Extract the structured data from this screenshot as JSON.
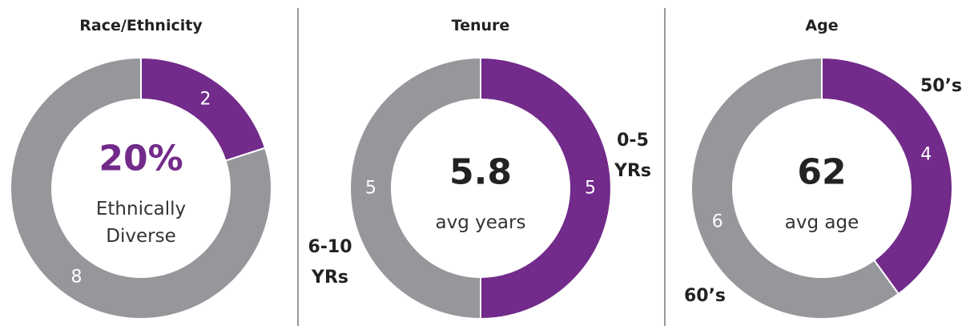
{
  "chart_data": [
    {
      "type": "pie",
      "title": "Race/Ethnicity",
      "categories": [
        null,
        null
      ],
      "values": [
        2,
        8
      ],
      "colors": [
        "#722b8a",
        "#96979b"
      ],
      "center_value": "20%",
      "center_label": "Ethnically Diverse",
      "center_color": "#722b8a"
    },
    {
      "type": "pie",
      "title": "Tenure",
      "categories": [
        "0-5 YRs",
        "6-10 YRs"
      ],
      "values": [
        5,
        5
      ],
      "colors": [
        "#722b8a",
        "#96979b"
      ],
      "center_value": 5.8,
      "center_label": "avg years",
      "center_color": "#222222"
    },
    {
      "type": "pie",
      "title": "Age",
      "categories": [
        "50’s",
        "60’s"
      ],
      "values": [
        4,
        6
      ],
      "colors": [
        "#722b8a",
        "#96979b"
      ],
      "center_value": 62,
      "center_label": "avg age",
      "center_color": "#222222"
    }
  ]
}
